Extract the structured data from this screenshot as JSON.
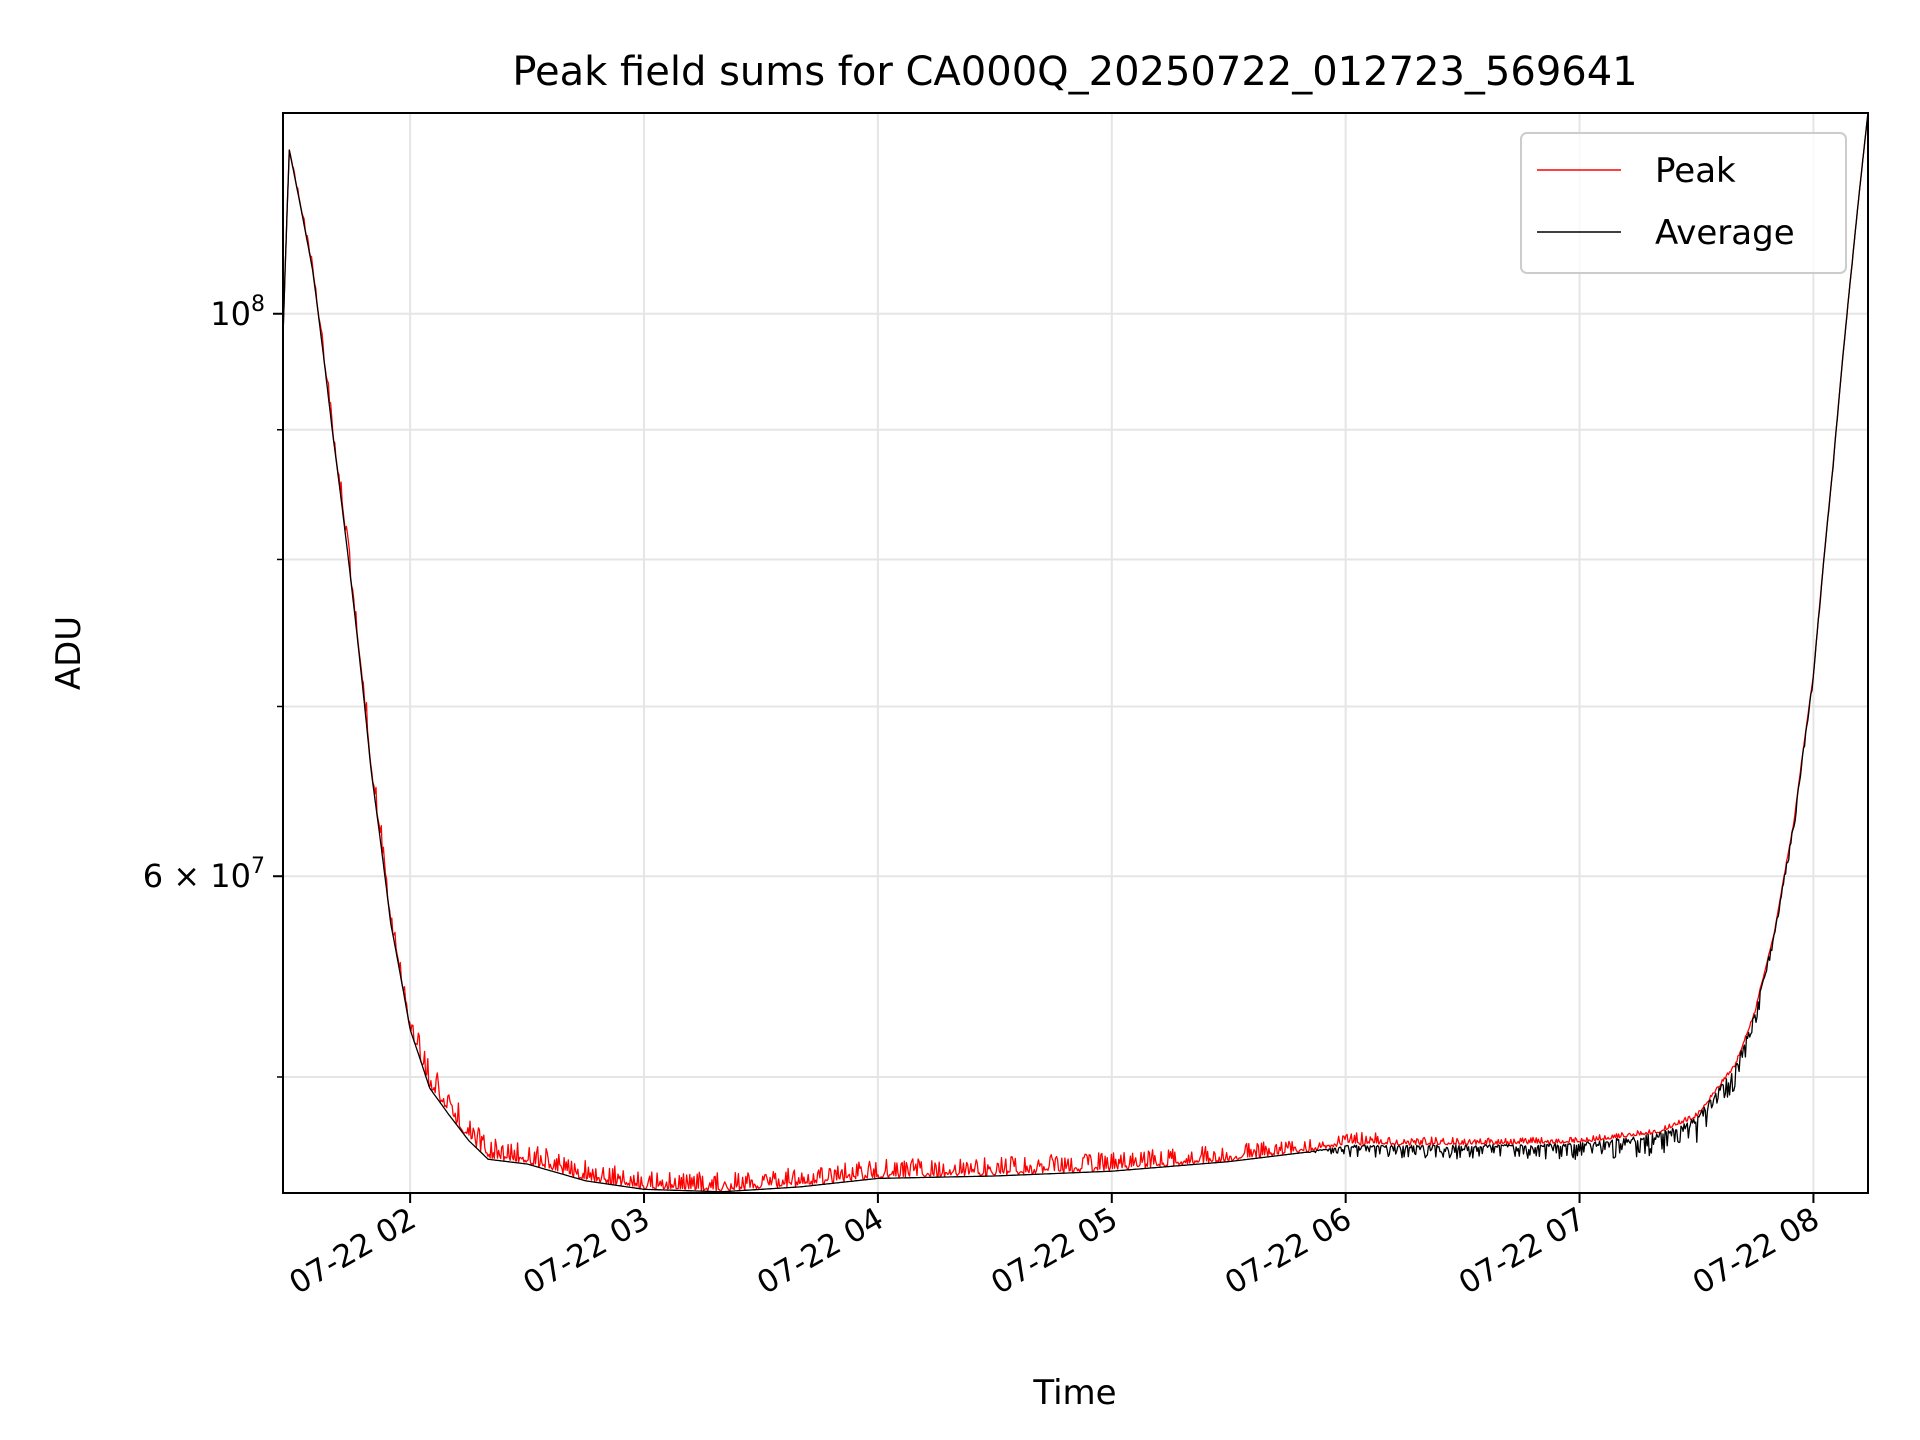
{
  "chart_data": {
    "type": "line",
    "title": "Peak field sums for CA000Q_20250722_012723_569641",
    "xlabel": "Time",
    "ylabel": "ADU",
    "y_scale": "log",
    "x_range": [
      "2025-07-22 01:27:23",
      "2025-07-22 08:14:00"
    ],
    "ylim": [
      45000000,
      120000000
    ],
    "x_ticks": [
      {
        "time": "2025-07-22 02:00",
        "label": "07-22 02"
      },
      {
        "time": "2025-07-22 03:00",
        "label": "07-22 03"
      },
      {
        "time": "2025-07-22 04:00",
        "label": "07-22 04"
      },
      {
        "time": "2025-07-22 05:00",
        "label": "07-22 05"
      },
      {
        "time": "2025-07-22 06:00",
        "label": "07-22 06"
      },
      {
        "time": "2025-07-22 07:00",
        "label": "07-22 07"
      },
      {
        "time": "2025-07-22 08:00",
        "label": "07-22 08"
      }
    ],
    "y_major_ticks": [
      {
        "value": 100000000,
        "base": "10",
        "exp": "8",
        "mult": ""
      },
      {
        "value": 60000000,
        "base": "10",
        "exp": "7",
        "mult": "6 × "
      }
    ],
    "y_minor_ticks": [
      50000000,
      70000000,
      80000000,
      90000000
    ],
    "grid": true,
    "legend": {
      "position": "top-right"
    },
    "series": [
      {
        "name": "Peak",
        "color": "#ff0000",
        "spike_amplitude": [
          [
            "2025-07-22 01:27:23",
            0
          ],
          [
            "2025-07-22 01:40",
            1500000
          ],
          [
            "2025-07-22 02:20",
            1000000
          ],
          [
            "2025-07-22 03:00",
            800000
          ],
          [
            "2025-07-22 05:00",
            800000
          ],
          [
            "2025-07-22 06:00",
            600000
          ],
          [
            "2025-07-22 06:30",
            300000
          ],
          [
            "2025-07-22 07:30",
            200000
          ],
          [
            "2025-07-22 08:14",
            0
          ]
        ]
      },
      {
        "name": "Average",
        "color": "#000000",
        "dip_amplitude": [
          [
            "2025-07-22 01:27:23",
            0
          ],
          [
            "2025-07-22 05:50",
            0
          ],
          [
            "2025-07-22 06:00",
            500000
          ],
          [
            "2025-07-22 07:00",
            700000
          ],
          [
            "2025-07-22 07:35",
            1200000
          ],
          [
            "2025-07-22 07:50",
            600000
          ],
          [
            "2025-07-22 08:14",
            0
          ]
        ]
      }
    ],
    "baseline": [
      [
        "2025-07-22 01:27:23",
        98000000
      ],
      [
        "2025-07-22 01:29",
        116000000
      ],
      [
        "2025-07-22 01:35",
        104000000
      ],
      [
        "2025-07-22 01:40",
        90000000
      ],
      [
        "2025-07-22 01:45",
        78000000
      ],
      [
        "2025-07-22 01:50",
        66000000
      ],
      [
        "2025-07-22 01:55",
        57500000
      ],
      [
        "2025-07-22 02:00",
        52200000
      ],
      [
        "2025-07-22 02:05",
        49500000
      ],
      [
        "2025-07-22 02:10",
        48300000
      ],
      [
        "2025-07-22 02:15",
        47200000
      ],
      [
        "2025-07-22 02:20",
        46400000
      ],
      [
        "2025-07-22 02:30",
        46200000
      ],
      [
        "2025-07-22 02:45",
        45500000
      ],
      [
        "2025-07-22 03:00",
        45150000
      ],
      [
        "2025-07-22 03:20",
        45050000
      ],
      [
        "2025-07-22 03:40",
        45250000
      ],
      [
        "2025-07-22 04:00",
        45600000
      ],
      [
        "2025-07-22 04:30",
        45700000
      ],
      [
        "2025-07-22 05:00",
        45900000
      ],
      [
        "2025-07-22 05:30",
        46300000
      ],
      [
        "2025-07-22 05:50",
        46700000
      ],
      [
        "2025-07-22 06:00",
        47000000
      ],
      [
        "2025-07-22 06:30",
        47000000
      ],
      [
        "2025-07-22 07:00",
        47100000
      ],
      [
        "2025-07-22 07:20",
        47500000
      ],
      [
        "2025-07-22 07:30",
        48200000
      ],
      [
        "2025-07-22 07:40",
        50500000
      ],
      [
        "2025-07-22 07:45",
        53000000
      ],
      [
        "2025-07-22 07:50",
        57000000
      ],
      [
        "2025-07-22 07:55",
        63000000
      ],
      [
        "2025-07-22 08:00",
        72000000
      ],
      [
        "2025-07-22 08:05",
        87000000
      ],
      [
        "2025-07-22 08:10",
        105000000
      ],
      [
        "2025-07-22 08:14",
        120000000
      ]
    ]
  }
}
